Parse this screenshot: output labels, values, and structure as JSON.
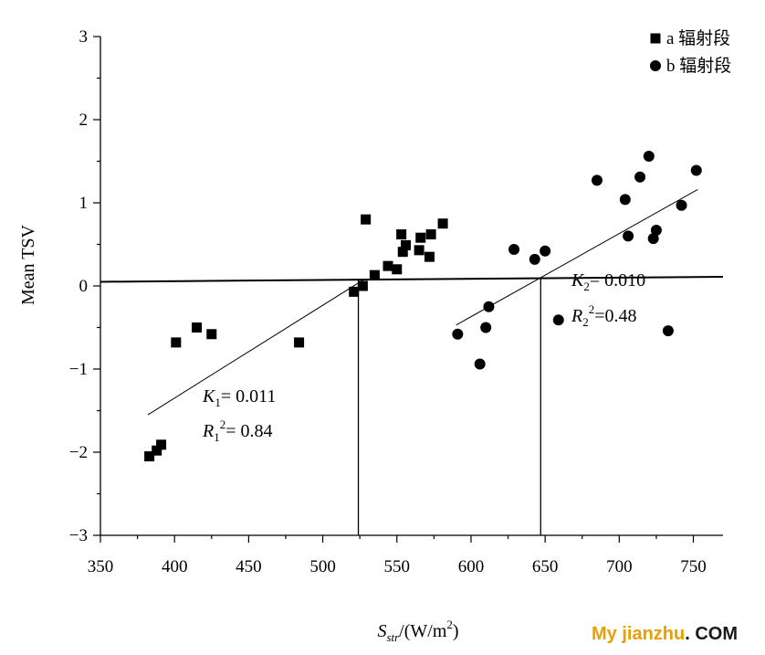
{
  "chart_data": {
    "type": "scatter",
    "xlim": [
      350,
      770
    ],
    "ylim": [
      -3,
      3
    ],
    "x_ticks": [
      350,
      400,
      450,
      500,
      550,
      600,
      650,
      700,
      750
    ],
    "x_tick_labels": [
      "350",
      "400",
      "450",
      "500",
      "550",
      "600",
      "650",
      "700",
      "750"
    ],
    "y_ticks": [
      3,
      2,
      1,
      0,
      -1,
      -2,
      -3
    ],
    "y_tick_labels": [
      "3",
      "2",
      "1",
      "0",
      "−1",
      "−2",
      "−3"
    ],
    "ylabel": "Mean TSV",
    "xlabel": {
      "base": "S",
      "sub": "str",
      "unit": "/(W/m",
      "sup": "2",
      "close": ")"
    },
    "legend_position": "top-right",
    "grid": false,
    "series": [
      {
        "name": "a 辐射段",
        "marker": "square",
        "points": [
          [
            383,
            -2.05
          ],
          [
            388,
            -1.98
          ],
          [
            391,
            -1.91
          ],
          [
            401,
            -0.68
          ],
          [
            415,
            -0.5
          ],
          [
            425,
            -0.58
          ],
          [
            484,
            -0.68
          ],
          [
            521,
            -0.07
          ],
          [
            527,
            0.0
          ],
          [
            529,
            0.8
          ],
          [
            535,
            0.13
          ],
          [
            544,
            0.24
          ],
          [
            550,
            0.2
          ],
          [
            553,
            0.62
          ],
          [
            554,
            0.41
          ],
          [
            556,
            0.49
          ],
          [
            565,
            0.43
          ],
          [
            566,
            0.58
          ],
          [
            572,
            0.35
          ],
          [
            573,
            0.62
          ],
          [
            581,
            0.75
          ]
        ],
        "fit_line": [
          [
            382,
            -1.55
          ],
          [
            528,
            0.08
          ]
        ]
      },
      {
        "name": "b 辐射段",
        "marker": "circle",
        "points": [
          [
            591,
            -0.58
          ],
          [
            606,
            -0.94
          ],
          [
            610,
            -0.5
          ],
          [
            612,
            -0.25
          ],
          [
            629,
            0.44
          ],
          [
            643,
            0.32
          ],
          [
            650,
            0.42
          ],
          [
            659,
            -0.41
          ],
          [
            685,
            1.27
          ],
          [
            704,
            1.04
          ],
          [
            706,
            0.6
          ],
          [
            714,
            1.31
          ],
          [
            720,
            1.56
          ],
          [
            723,
            0.57
          ],
          [
            725,
            0.67
          ],
          [
            733,
            -0.54
          ],
          [
            742,
            0.97
          ],
          [
            752,
            1.39
          ]
        ],
        "fit_line": [
          [
            590,
            -0.47
          ],
          [
            753,
            1.16
          ]
        ]
      }
    ],
    "reference_line": [
      [
        350,
        0.05
      ],
      [
        770,
        0.11
      ]
    ],
    "threshold_lines": [
      {
        "x": 524,
        "y_from": 0.08,
        "y_to": -3.0
      },
      {
        "x": 647,
        "y_from": 0.1,
        "y_to": -3.0
      }
    ],
    "annotations": [
      {
        "id": "k1",
        "var": "K",
        "sub": "1",
        "text": "= 0.011"
      },
      {
        "id": "r1",
        "var": "R",
        "sub": "1",
        "sup": "2",
        "text": "= 0.84"
      },
      {
        "id": "k2",
        "var": "K",
        "sub": "2",
        "text": "= 0.010"
      },
      {
        "id": "r2",
        "var": "R",
        "sub": "2",
        "sup": "2",
        "text": "=0.48"
      }
    ]
  },
  "watermark": {
    "main": "My jianzhu",
    "domain": ". COM"
  }
}
